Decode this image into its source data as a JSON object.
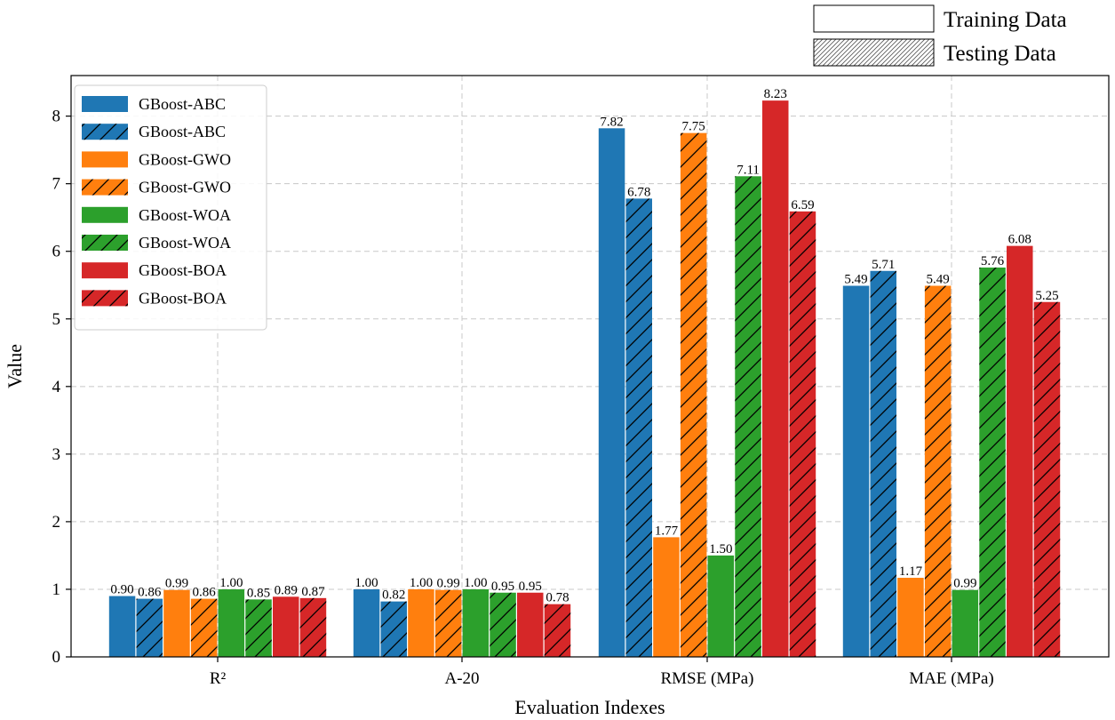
{
  "chart_data": {
    "type": "bar",
    "title": "",
    "xlabel": "Evaluation Indexes",
    "ylabel": "Value",
    "ylim": [
      0,
      8.6
    ],
    "yticks": [
      0,
      1,
      2,
      3,
      4,
      5,
      6,
      7,
      8
    ],
    "grid": true,
    "categories": [
      "R²",
      "A-20",
      "RMSE (MPa)",
      "MAE (MPa)"
    ],
    "series": [
      {
        "name": "GBoost-ABC",
        "dataset": "Training Data",
        "color": "#1f77b4",
        "hatched": false,
        "values": [
          0.9,
          1.0,
          7.82,
          5.49
        ],
        "labels": [
          "0.90",
          "1.00",
          "7.82",
          "5.49"
        ]
      },
      {
        "name": "GBoost-ABC",
        "dataset": "Testing Data",
        "color": "#1f77b4",
        "hatched": true,
        "values": [
          0.86,
          0.82,
          6.78,
          5.71
        ],
        "labels": [
          "0.86",
          "0.82",
          "6.78",
          "5.71"
        ]
      },
      {
        "name": "GBoost-GWO",
        "dataset": "Training Data",
        "color": "#ff7f0e",
        "hatched": false,
        "values": [
          0.99,
          1.0,
          1.77,
          1.17
        ],
        "labels": [
          "0.99",
          "1.00",
          "1.77",
          "1.17"
        ]
      },
      {
        "name": "GBoost-GWO",
        "dataset": "Testing Data",
        "color": "#ff7f0e",
        "hatched": true,
        "values": [
          0.86,
          0.99,
          7.75,
          5.49
        ],
        "labels": [
          "0.86",
          "0.99",
          "7.75",
          "5.49"
        ]
      },
      {
        "name": "GBoost-WOA",
        "dataset": "Training Data",
        "color": "#2ca02c",
        "hatched": false,
        "values": [
          1.0,
          1.0,
          1.5,
          0.99
        ],
        "labels": [
          "1.00",
          "1.00",
          "1.50",
          "0.99"
        ]
      },
      {
        "name": "GBoost-WOA",
        "dataset": "Testing Data",
        "color": "#2ca02c",
        "hatched": true,
        "values": [
          0.85,
          0.95,
          7.11,
          5.76
        ],
        "labels": [
          "0.85",
          "0.95",
          "7.11",
          "5.76"
        ]
      },
      {
        "name": "GBoost-BOA",
        "dataset": "Training Data",
        "color": "#d62728",
        "hatched": false,
        "values": [
          0.89,
          0.95,
          8.23,
          6.08
        ],
        "labels": [
          "0.89",
          "0.95",
          "8.23",
          "6.08"
        ]
      },
      {
        "name": "GBoost-BOA",
        "dataset": "Testing Data",
        "color": "#d62728",
        "hatched": true,
        "values": [
          0.87,
          0.78,
          6.59,
          5.25
        ],
        "labels": [
          "0.87",
          "0.78",
          "6.59",
          "5.25"
        ]
      }
    ],
    "legend": {
      "position": "upper-left",
      "entries": [
        "GBoost-ABC",
        "GBoost-ABC",
        "GBoost-GWO",
        "GBoost-GWO",
        "GBoost-WOA",
        "GBoost-WOA",
        "GBoost-BOA",
        "GBoost-BOA"
      ]
    },
    "pattern_legend": {
      "position": "top-right",
      "entries": [
        {
          "label": "Training Data",
          "hatched": false
        },
        {
          "label": "Testing Data",
          "hatched": true
        }
      ]
    }
  }
}
